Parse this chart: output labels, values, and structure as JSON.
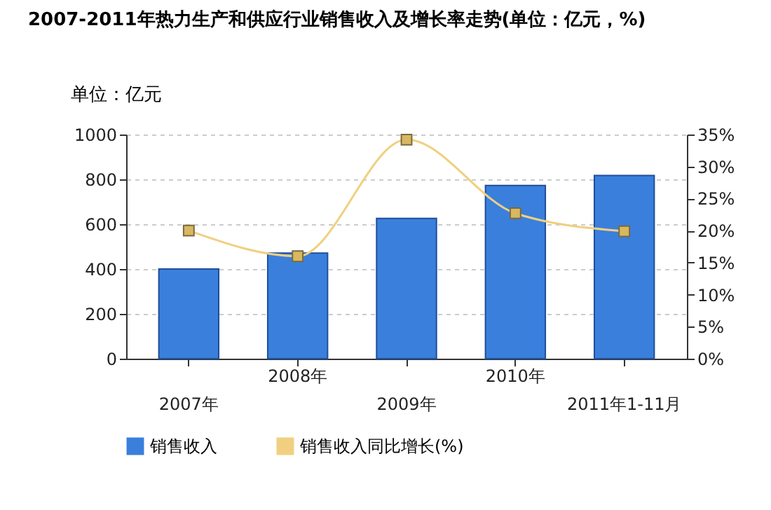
{
  "chart_data": {
    "type": "bar",
    "title": "2007-2011年热力生产和供应行业销售收入及增长率走势(单位：亿元，%)",
    "ylabel": "单位：亿元",
    "categories": [
      "2007年",
      "2008年",
      "2009年",
      "2010年",
      "2011年1-11月"
    ],
    "series": [
      {
        "name": "销售收入",
        "color": "#3a7fdc",
        "values": [
          400,
          471,
          626,
          773,
          817
        ]
      },
      {
        "name": "销售收入同比增长(%)",
        "type": "line",
        "axis": "y2",
        "color": "#f0d080",
        "marker": "square",
        "values": [
          20,
          16,
          34.2,
          22.7,
          19.9
        ]
      }
    ],
    "ylim": [
      0,
      1000
    ],
    "yticks": [
      0,
      200,
      400,
      600,
      800,
      1000
    ],
    "y2lim": [
      0,
      35
    ],
    "y2ticks": [
      {
        "value": 0,
        "label": "0%"
      },
      {
        "value": 5,
        "label": "5%"
      },
      {
        "value": 10,
        "label": "10%"
      },
      {
        "value": 15,
        "label": "15%"
      },
      {
        "value": 20,
        "label": "20%"
      },
      {
        "value": 25,
        "label": "25%"
      },
      {
        "value": 30,
        "label": "30%"
      },
      {
        "value": 35,
        "label": "35%"
      }
    ],
    "grid": "y",
    "legend": "bottom"
  }
}
